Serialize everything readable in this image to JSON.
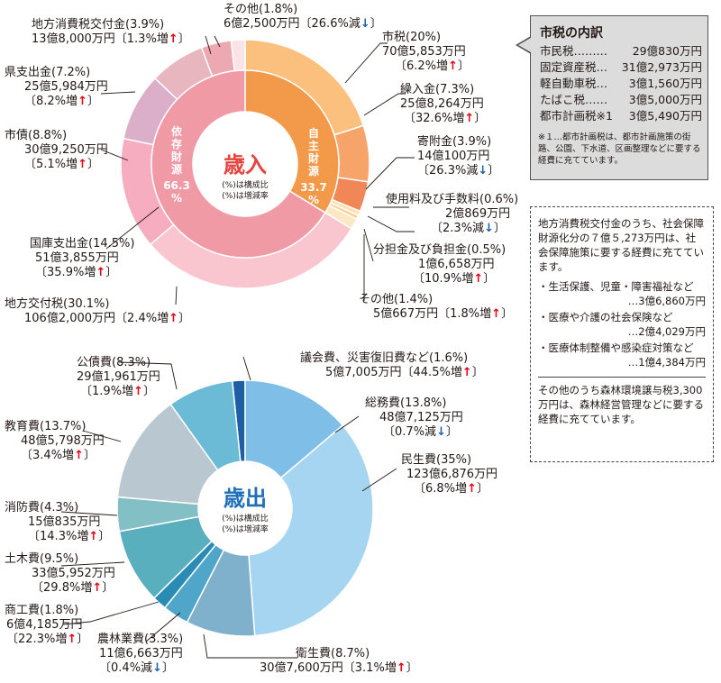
{
  "chart_data": [
    {
      "type": "donut",
      "center_title": "歳入",
      "center_note_1": "(%)は構成比",
      "center_note_2": "(%)は増減率",
      "inner_ring": [
        {
          "name": "自主財源",
          "pct_text": "33.7%",
          "value": 33.7,
          "color": "#f29a4a"
        },
        {
          "name": "依存財源",
          "pct_text": "66.3%",
          "value": 66.3,
          "color": "#f09aa6"
        }
      ],
      "slices": [
        {
          "name": "市税",
          "pct": 20.0,
          "amount": "70億5,853万円",
          "change": "6.2%",
          "dir": "増",
          "color": "#fbc07e"
        },
        {
          "name": "繰入金",
          "pct": 7.3,
          "amount": "25億8,264万円",
          "change": "32.6%",
          "dir": "増",
          "color": "#f6a46a"
        },
        {
          "name": "寄附金",
          "pct": 3.9,
          "amount": "14億100万円",
          "change": "26.3%",
          "dir": "減",
          "color": "#f18656"
        },
        {
          "name": "使用料及び手数料",
          "pct": 0.6,
          "amount": "2億869万円",
          "change": "2.3%",
          "dir": "減",
          "color": "#fde0b5"
        },
        {
          "name": "分担金及び負担金",
          "pct": 0.5,
          "amount": "1億6,658万円",
          "change": "10.9%",
          "dir": "増",
          "color": "#fcd08f"
        },
        {
          "name": "その他",
          "pct": 1.4,
          "amount": "5億667万円",
          "change": "1.8%",
          "dir": "増",
          "color": "#fde8c5"
        },
        {
          "name": "地方交付税",
          "pct": 30.1,
          "amount": "106億2,000万円",
          "change": "2.4%",
          "dir": "増",
          "color": "#f9c6cf"
        },
        {
          "name": "国庫支出金",
          "pct": 14.5,
          "amount": "51億3,855万円",
          "change": "35.9%",
          "dir": "増",
          "color": "#f6adc0"
        },
        {
          "name": "市債",
          "pct": 8.8,
          "amount": "30億9,250万円",
          "change": "5.1%",
          "dir": "増",
          "color": "#dbaeca"
        },
        {
          "name": "県支出金",
          "pct": 7.2,
          "amount": "25億5,984万円",
          "change": "8.2%",
          "dir": "増",
          "color": "#e7b6bf"
        },
        {
          "name": "地方消費税交付金",
          "pct": 3.9,
          "amount": "13億8,000万円",
          "change": "1.3%",
          "dir": "増",
          "color": "#eca9b1"
        },
        {
          "name": "その他",
          "pct": 1.8,
          "amount": "6億2,500万円",
          "change": "26.6%",
          "dir": "減",
          "color": "#fbe2e4"
        }
      ]
    },
    {
      "type": "donut",
      "center_title": "歳出",
      "center_note_1": "(%)は構成比",
      "center_note_2": "(%)は増減率",
      "slices": [
        {
          "name": "議会費、災害復旧費など",
          "pct": 1.6,
          "amount": "5億7,005万円",
          "change": "44.5%",
          "dir": "増",
          "color": "#1f5ea3"
        },
        {
          "name": "総務費",
          "pct": 13.8,
          "amount": "48億7,125万円",
          "change": "0.7%",
          "dir": "減",
          "color": "#7fbfe7"
        },
        {
          "name": "民生費",
          "pct": 35.0,
          "amount": "123億6,876万円",
          "change": "6.8%",
          "dir": "増",
          "color": "#a5d5f1"
        },
        {
          "name": "衛生費",
          "pct": 8.7,
          "amount": "30億7,600万円",
          "change": "3.1%",
          "dir": "増",
          "color": "#7fb1cd"
        },
        {
          "name": "農林業費",
          "pct": 3.3,
          "amount": "11億6,663万円",
          "change": "0.4%",
          "dir": "減",
          "color": "#4fa6c9"
        },
        {
          "name": "商工費",
          "pct": 1.8,
          "amount": "6億4,185万円",
          "change": "22.3%",
          "dir": "増",
          "color": "#2a8bb4"
        },
        {
          "name": "土木費",
          "pct": 9.5,
          "amount": "33億5,952万円",
          "change": "29.8%",
          "dir": "増",
          "color": "#5aafbf"
        },
        {
          "name": "消防費",
          "pct": 4.3,
          "amount": "15億835万円",
          "change": "14.3%",
          "dir": "増",
          "color": "#82c0c6"
        },
        {
          "name": "教育費",
          "pct": 13.7,
          "amount": "48億5,798万円",
          "change": "3.4%",
          "dir": "増",
          "color": "#b9c8d0"
        },
        {
          "name": "公債費",
          "pct": 8.3,
          "amount": "29億1,961万円",
          "change": "1.9%",
          "dir": "増",
          "color": "#6bbbd6"
        }
      ]
    }
  ],
  "shisei_box": {
    "title": "市税の内訳",
    "items": [
      {
        "name": "市民税………",
        "value": "29億830万円"
      },
      {
        "name": "固定資産税…",
        "value": "31億2,973万円"
      },
      {
        "name": "軽自動車税…",
        "value": "3億1,560万円"
      },
      {
        "name": "たばこ税……",
        "value": "3億5,000万円"
      },
      {
        "name": "都市計画税※1",
        "value": "3億5,490万円"
      }
    ],
    "note": "※１…都市計画税は、都市計画施策の街路、公園、下水道、区画整理などに要する経費に充てています。"
  },
  "info_box": {
    "intro": "地方消費税交付金のうち、社会保障財源化分の７億５,273万円は、社会保障施策に要する経費に充てています。",
    "items": [
      {
        "text": "・生活保護、児童・障害福祉など",
        "amount": "…3億6,860万円"
      },
      {
        "text": "・医療や介護の社会保険など",
        "amount": "…2億4,029万円"
      },
      {
        "text": "・医療体制整備や感染症対策など",
        "amount": "…1億4,384万円"
      }
    ],
    "footer": "その他のうち森林環境譲与税3,300万円は、森林経営管理などに要する経費に充てています。"
  },
  "arrow_up": "↑",
  "arrow_down": "↓"
}
